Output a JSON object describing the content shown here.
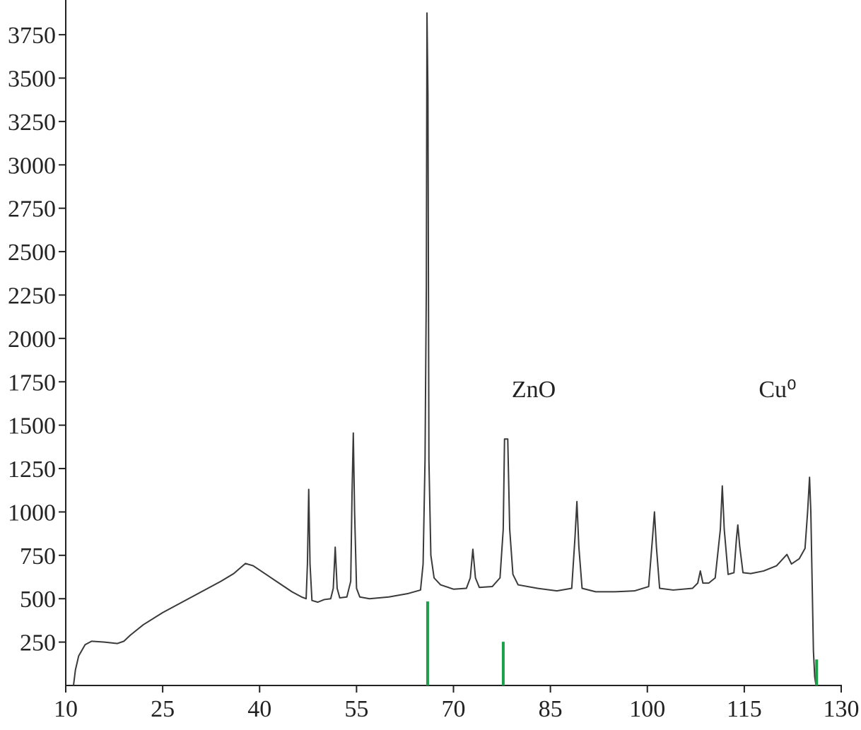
{
  "chart_data": {
    "type": "line",
    "x": [
      11.2,
      11.5,
      12,
      13,
      14,
      16,
      18,
      19,
      20,
      22,
      25,
      28,
      31,
      34,
      36,
      37.8,
      39,
      41,
      43,
      45,
      46.5,
      47.2,
      47.4,
      47.6,
      47.8,
      48.1,
      49,
      50,
      51,
      51.4,
      51.7,
      52,
      52.4,
      53.5,
      54.1,
      54.3,
      54.5,
      54.7,
      55,
      55.5,
      57,
      60,
      63,
      64.9,
      65.3,
      65.6,
      65.8,
      65.9,
      66.05,
      66.2,
      66.5,
      67,
      68,
      70,
      72,
      72.6,
      73,
      73.4,
      74,
      76,
      77.2,
      77.7,
      77.9,
      78.4,
      78.7,
      79.2,
      80,
      83,
      86,
      88.3,
      88.8,
      89.1,
      89.4,
      89.9,
      92,
      95,
      98,
      100.2,
      100.8,
      101.1,
      101.4,
      101.9,
      104,
      107,
      107.8,
      108.2,
      108.6,
      109.5,
      110.5,
      111.3,
      111.6,
      111.9,
      112.5,
      113.4,
      113.8,
      114.0,
      114.3,
      114.8,
      116,
      118,
      120,
      121.6,
      122.3,
      123.5,
      124.4,
      124.8,
      125.1,
      125.3,
      125.5,
      125.7,
      125.9,
      126.1
    ],
    "values": [
      0,
      90,
      170,
      235,
      255,
      250,
      242,
      255,
      290,
      350,
      420,
      480,
      540,
      600,
      645,
      703,
      690,
      640,
      590,
      540,
      510,
      500,
      700,
      1130,
      700,
      490,
      480,
      495,
      500,
      560,
      797,
      560,
      505,
      510,
      600,
      1100,
      1455,
      1000,
      560,
      510,
      500,
      510,
      530,
      550,
      700,
      1300,
      2300,
      3875,
      3400,
      1300,
      750,
      620,
      580,
      555,
      560,
      620,
      785,
      620,
      565,
      570,
      620,
      900,
      1420,
      1420,
      900,
      640,
      580,
      560,
      545,
      560,
      850,
      1060,
      800,
      560,
      540,
      540,
      545,
      570,
      850,
      1000,
      800,
      560,
      550,
      560,
      590,
      660,
      590,
      590,
      620,
      900,
      1150,
      900,
      640,
      650,
      850,
      925,
      800,
      650,
      645,
      660,
      690,
      755,
      700,
      730,
      790,
      1000,
      1200,
      1000,
      600,
      200,
      50,
      0
    ],
    "color": "#3a3a3a",
    "sticks": {
      "color": "#1f9e4a",
      "x": [
        66.0,
        77.7,
        126.2
      ],
      "values": [
        484,
        252,
        150
      ]
    },
    "annotations": [
      "ZnO",
      "Cu⁰"
    ],
    "xlim": [
      10,
      130
    ],
    "xticks": [
      10,
      25,
      40,
      55,
      70,
      85,
      100,
      115,
      130
    ],
    "ylim": [
      0,
      3950
    ],
    "yticks": [
      250,
      500,
      750,
      1000,
      1250,
      1500,
      1750,
      2000,
      2250,
      2500,
      2750,
      3000,
      3250,
      3500,
      3750
    ]
  }
}
